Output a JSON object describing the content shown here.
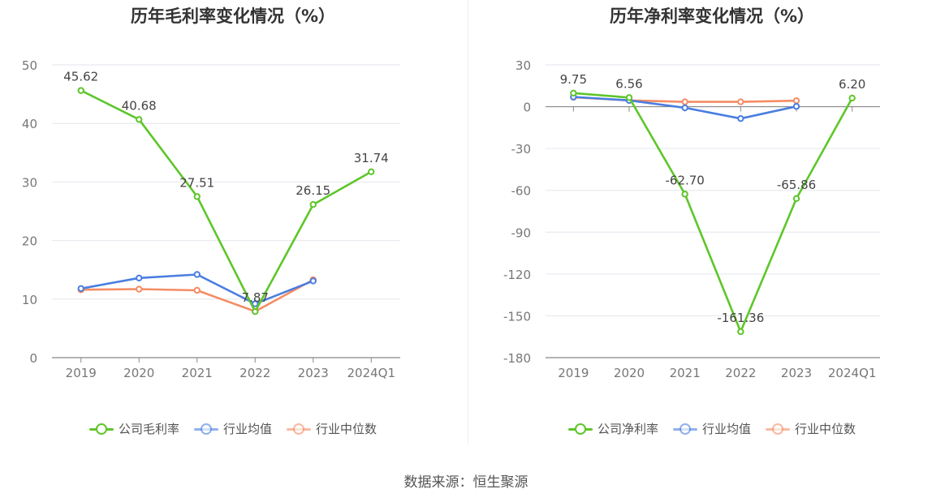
{
  "chart_data": [
    {
      "type": "line",
      "title": "历年毛利率变化情况（%）",
      "categories": [
        "2019",
        "2020",
        "2021",
        "2022",
        "2023",
        "2024Q1"
      ],
      "ylim": [
        0,
        50
      ],
      "yticks": [
        0,
        10,
        20,
        30,
        40,
        50
      ],
      "series": [
        {
          "name": "公司毛利率",
          "color": "#5ec62a",
          "values": [
            45.62,
            40.68,
            27.51,
            7.87,
            26.15,
            31.74
          ],
          "labels": [
            "45.62",
            "40.68",
            "27.51",
            "7.87",
            "26.15",
            "31.74"
          ]
        },
        {
          "name": "行业均值",
          "color": "#4a7ee0",
          "values": [
            11.8,
            13.6,
            14.2,
            9.2,
            13.1,
            null
          ],
          "labels": []
        },
        {
          "name": "行业中位数",
          "color": "#f58c64",
          "values": [
            11.6,
            11.7,
            11.5,
            7.9,
            13.3,
            null
          ],
          "labels": []
        }
      ],
      "legend": "bottom"
    },
    {
      "type": "line",
      "title": "历年净利率变化情况（%）",
      "categories": [
        "2019",
        "2020",
        "2021",
        "2022",
        "2023",
        "2024Q1"
      ],
      "ylim": [
        -180,
        30
      ],
      "yticks": [
        -180,
        -150,
        -120,
        -90,
        -60,
        -30,
        0,
        30
      ],
      "series": [
        {
          "name": "公司净利率",
          "color": "#5ec62a",
          "values": [
            9.75,
            6.56,
            -62.7,
            -161.36,
            -65.86,
            6.2
          ],
          "labels": [
            "9.75",
            "6.56",
            "-62.70",
            "-161.36",
            "-65.86",
            "6.20"
          ]
        },
        {
          "name": "行业均值",
          "color": "#4a7ee0",
          "values": [
            7.0,
            4.5,
            -0.8,
            -8.5,
            0.2,
            null
          ],
          "labels": []
        },
        {
          "name": "行业中位数",
          "color": "#f58c64",
          "values": [
            6.8,
            4.5,
            3.5,
            3.5,
            4.3,
            null
          ],
          "labels": []
        }
      ],
      "legend": "bottom"
    }
  ],
  "source": "数据来源：恒生聚源"
}
